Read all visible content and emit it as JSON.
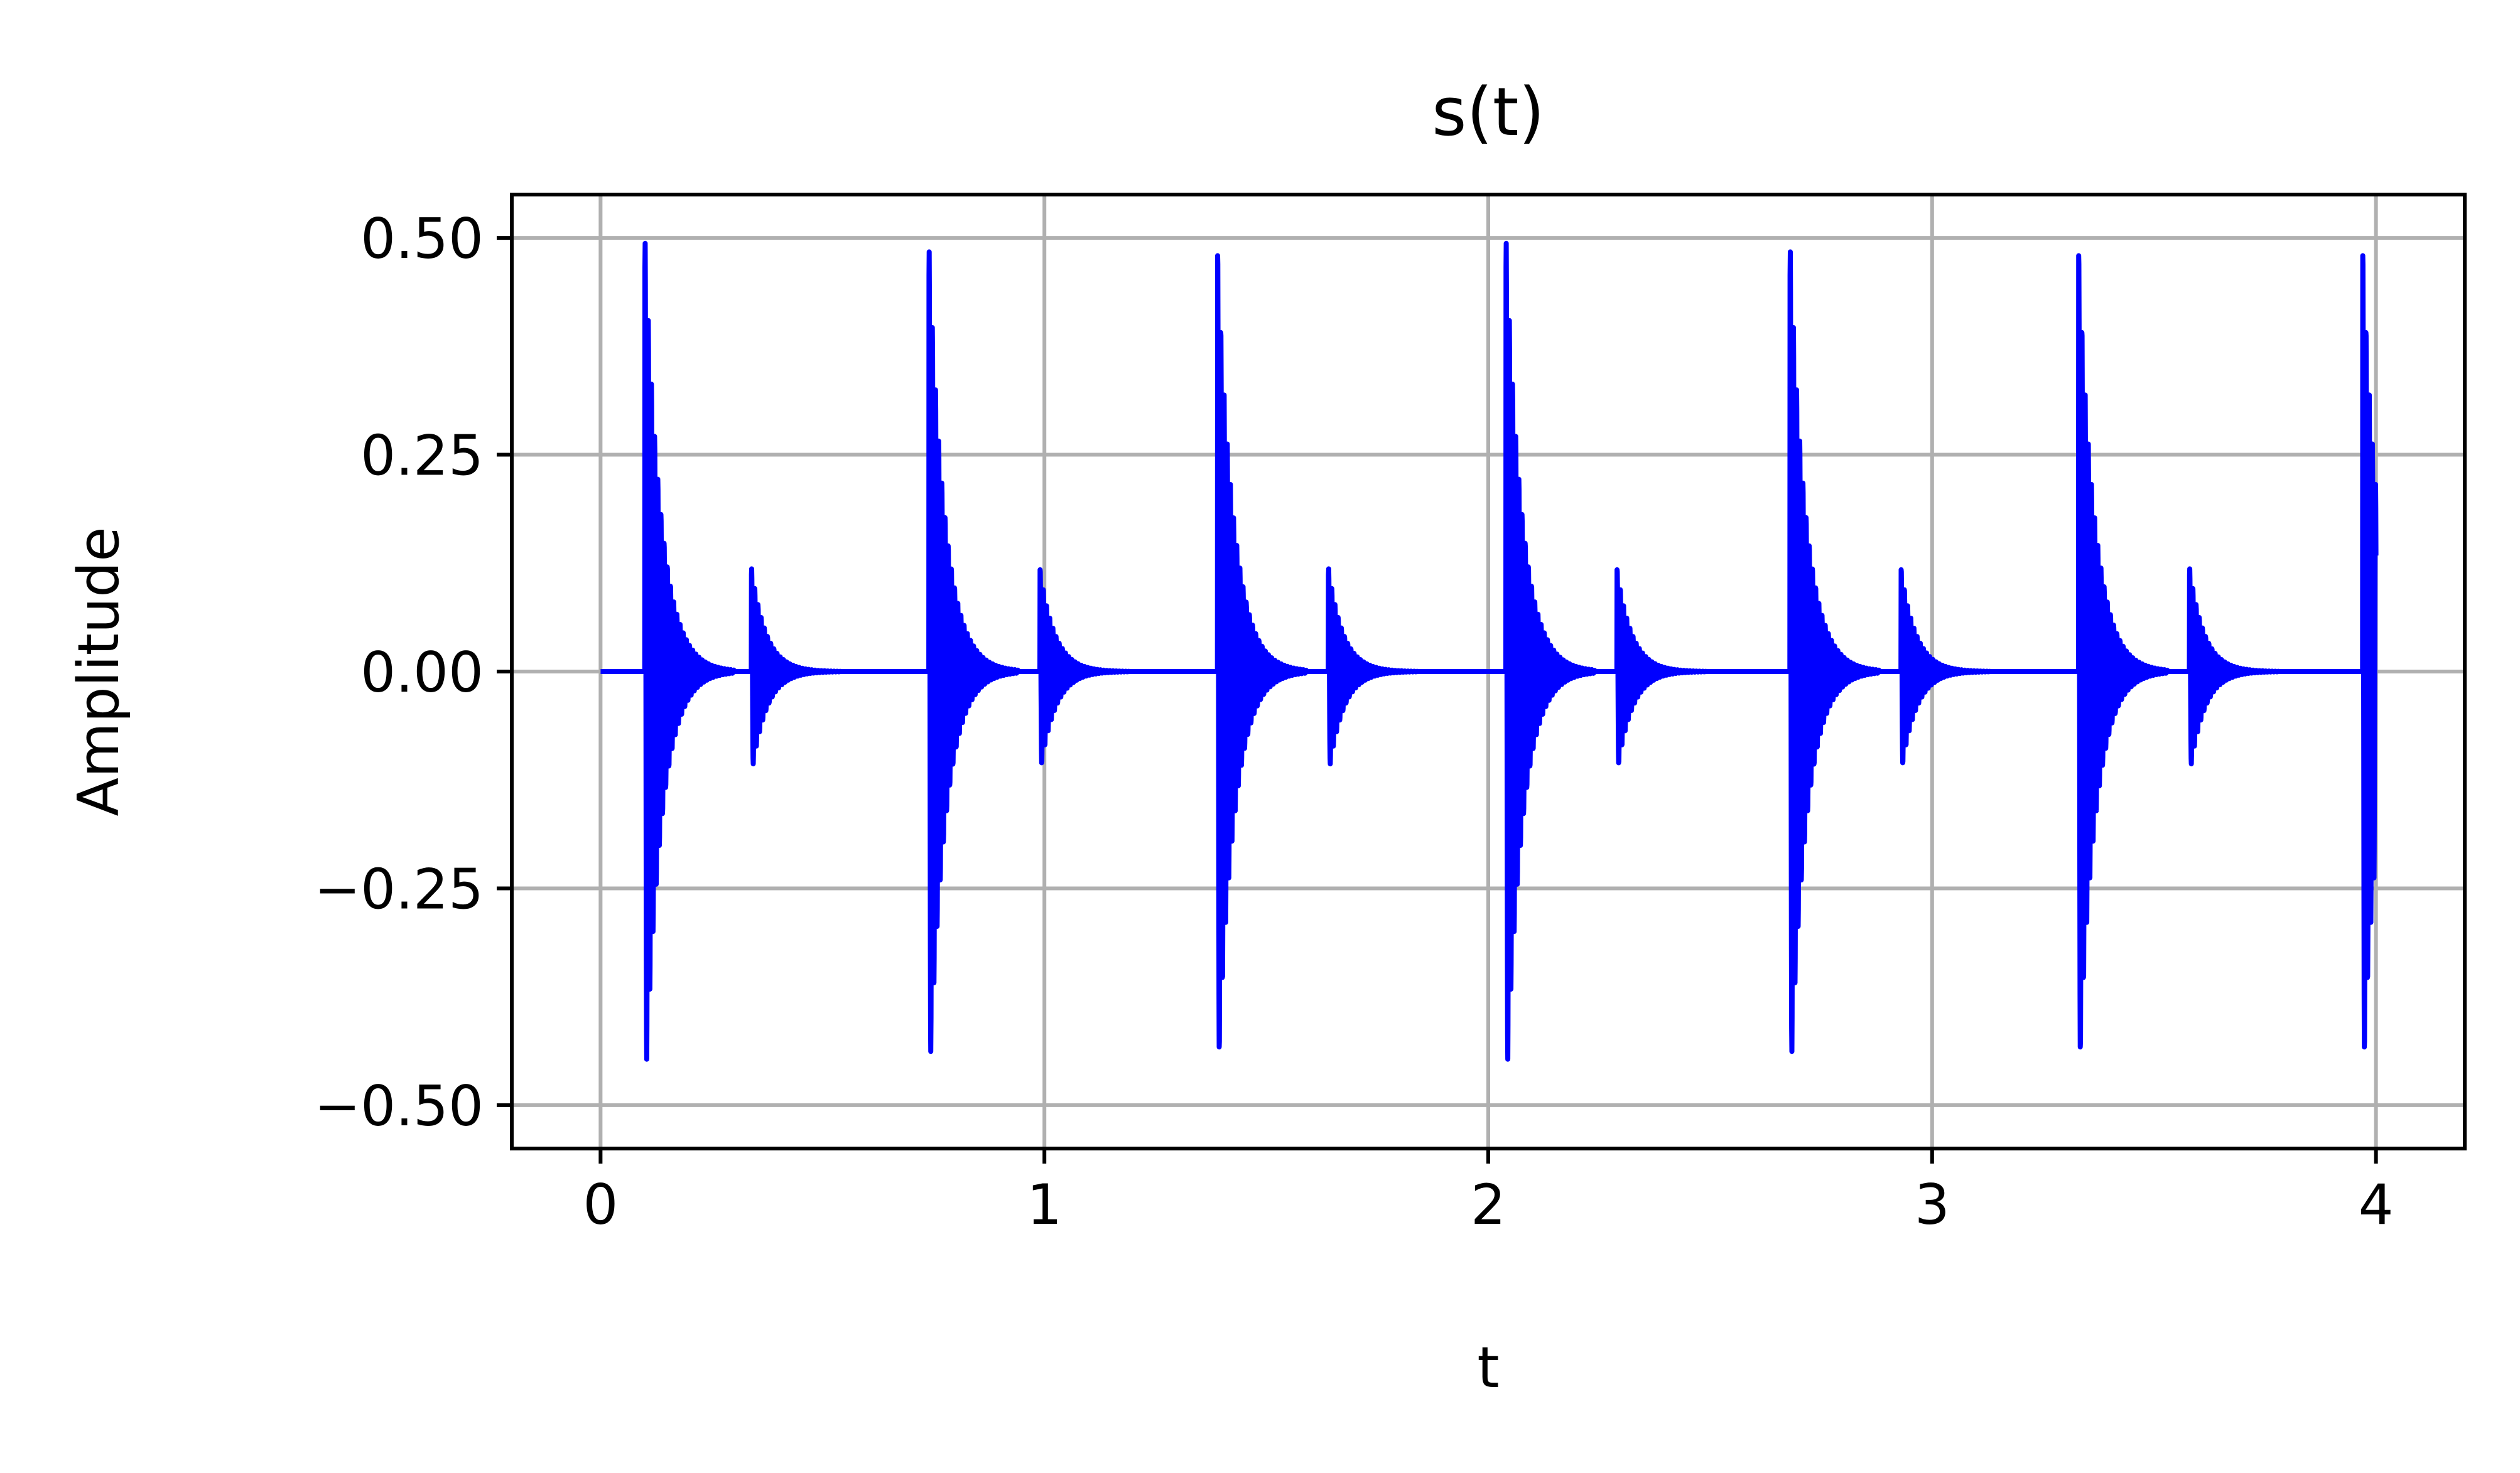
{
  "chart_data": {
    "type": "line",
    "title": "s(t)",
    "xlabel": "t",
    "ylabel": "Amplitude",
    "xlim": [
      -0.2,
      4.2
    ],
    "ylim": [
      -0.55,
      0.55
    ],
    "xticks": [
      0,
      1,
      2,
      3,
      4
    ],
    "xtick_labels": [
      "0",
      "1",
      "2",
      "3",
      "4"
    ],
    "yticks": [
      0.5,
      0.25,
      0.0,
      -0.25,
      -0.5
    ],
    "ytick_labels": [
      "0.50",
      "0.25",
      "0.00",
      "−0.25",
      "−0.50"
    ],
    "grid": true,
    "legend": "none",
    "colors": {
      "line": "#0000ff",
      "grid": "#b0b0b0",
      "axes": "#000000"
    },
    "t_range": [
      0,
      4
    ],
    "series": [
      {
        "line_color": "#0000ff",
        "bursts": [
          {
            "t": 0.1,
            "amplitude": 0.5,
            "decay": 28
          },
          {
            "t": 0.34,
            "amplitude": 0.12,
            "decay": 30
          },
          {
            "t": 0.74,
            "amplitude": 0.49,
            "decay": 28
          },
          {
            "t": 0.99,
            "amplitude": 0.12,
            "decay": 30
          },
          {
            "t": 1.39,
            "amplitude": 0.49,
            "decay": 28
          },
          {
            "t": 1.64,
            "amplitude": 0.12,
            "decay": 30
          },
          {
            "t": 2.04,
            "amplitude": 0.5,
            "decay": 28
          },
          {
            "t": 2.29,
            "amplitude": 0.12,
            "decay": 30
          },
          {
            "t": 2.68,
            "amplitude": 0.49,
            "decay": 28
          },
          {
            "t": 2.93,
            "amplitude": 0.12,
            "decay": 30
          },
          {
            "t": 3.33,
            "amplitude": 0.49,
            "decay": 28
          },
          {
            "t": 3.58,
            "amplitude": 0.12,
            "decay": 30
          },
          {
            "t": 3.97,
            "amplitude": 0.49,
            "decay": 28
          }
        ]
      }
    ]
  }
}
